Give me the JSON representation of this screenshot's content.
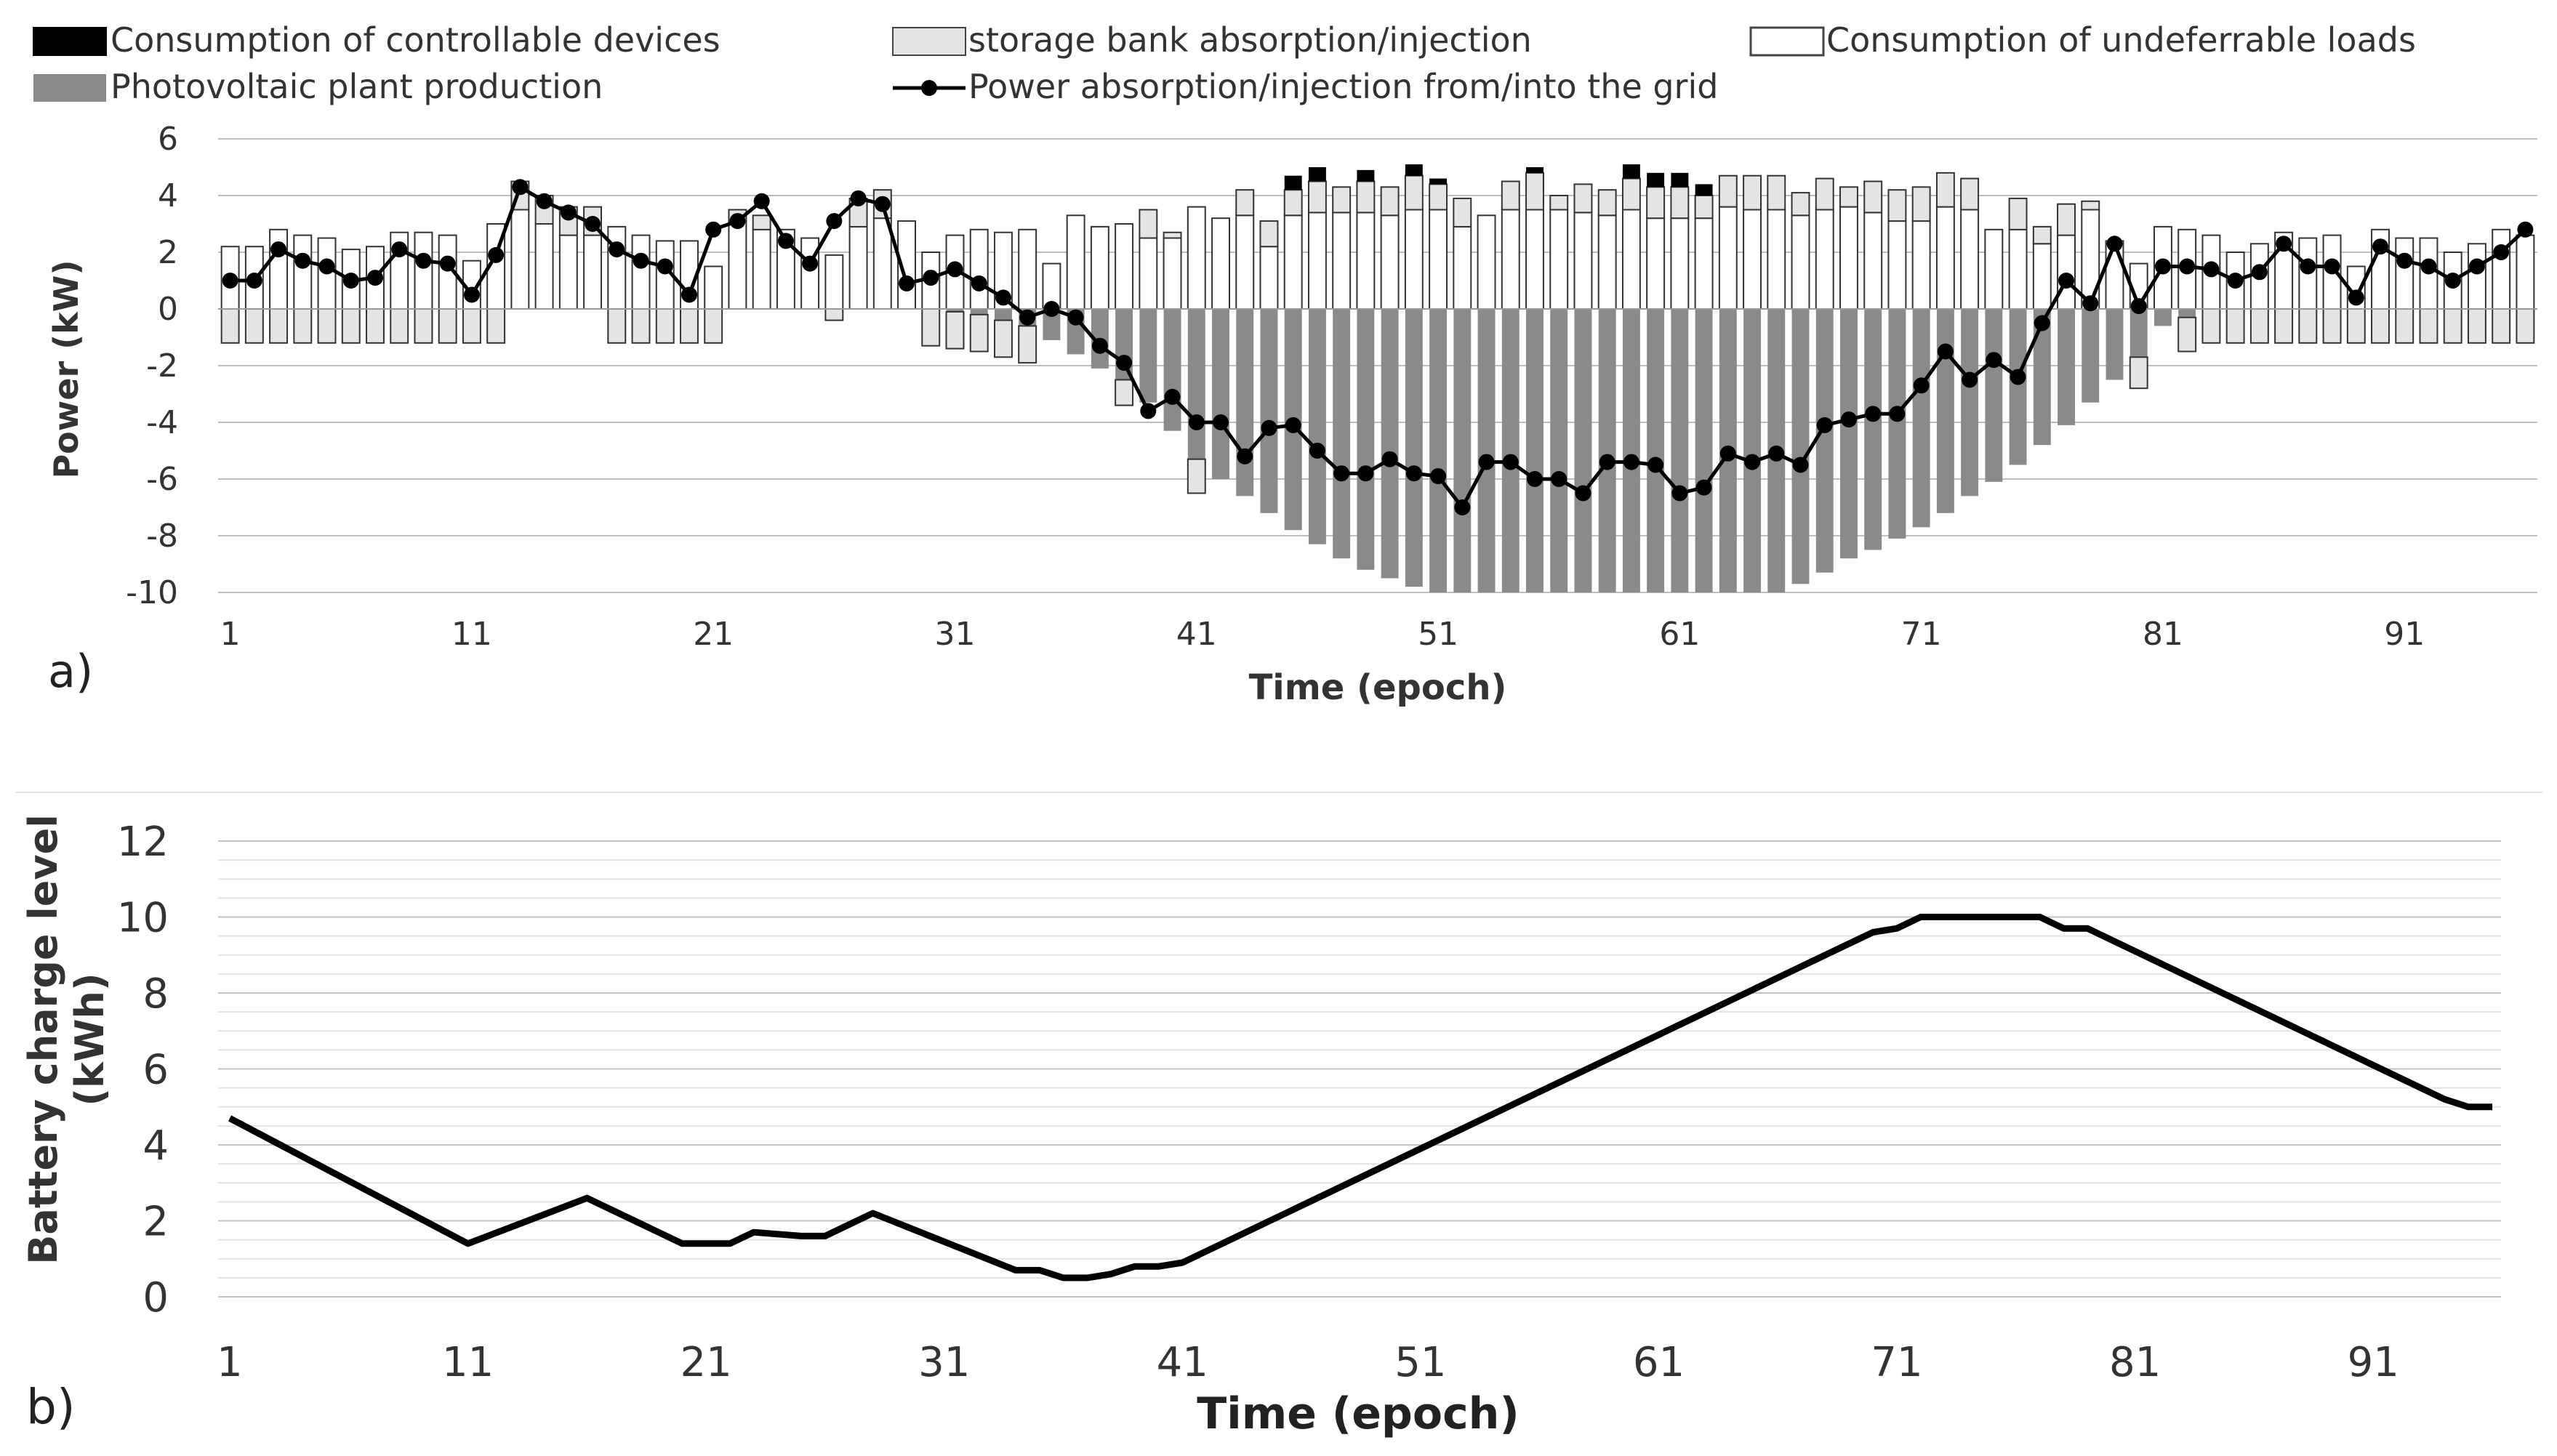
{
  "figure": {
    "panel_a_label": "a)",
    "panel_b_label": "b)"
  },
  "colors": {
    "controllable": "#000000",
    "storage_fill": "#e4e4e4",
    "undeferrable_fill": "#ffffff",
    "pv": "#8a8a8a",
    "grid_line": "#000000",
    "gridlines": "#bdbdbd"
  },
  "chart_data": [
    {
      "type": "bar",
      "panel": "a",
      "stacked": true,
      "xlabel": "Time (epoch)",
      "ylabel": "Power (kW)",
      "ylim": [
        -10,
        6
      ],
      "yticks": [
        "6",
        "4",
        "2",
        "0",
        "-2",
        "-4",
        "-6",
        "-8",
        "-10"
      ],
      "xtick_labels": [
        "1",
        "11",
        "21",
        "31",
        "41",
        "51",
        "61",
        "71",
        "81",
        "91"
      ],
      "grid": "horizontal",
      "legend_position": "top",
      "legend": [
        "Consumption of controllable devices",
        "storage bank absorption/injection",
        "Consumption of undeferrable loads",
        "Photovoltaic plant production",
        "Power absorption/injection from/into the grid"
      ],
      "x": [
        1,
        2,
        3,
        4,
        5,
        6,
        7,
        8,
        9,
        10,
        11,
        12,
        13,
        14,
        15,
        16,
        17,
        18,
        19,
        20,
        21,
        22,
        23,
        24,
        25,
        26,
        27,
        28,
        29,
        30,
        31,
        32,
        33,
        34,
        35,
        36,
        37,
        38,
        39,
        40,
        41,
        42,
        43,
        44,
        45,
        46,
        47,
        48,
        49,
        50,
        51,
        52,
        53,
        54,
        55,
        56,
        57,
        58,
        59,
        60,
        61,
        62,
        63,
        64,
        65,
        66,
        67,
        68,
        69,
        70,
        71,
        72,
        73,
        74,
        75,
        76,
        77,
        78,
        79,
        80,
        81,
        82,
        83,
        84,
        85,
        86,
        87,
        88,
        89,
        90,
        91,
        92,
        93,
        94,
        95,
        96
      ],
      "series": [
        {
          "name": "Consumption of undeferrable loads",
          "values": [
            2.2,
            2.2,
            2.8,
            2.6,
            2.5,
            2.1,
            2.2,
            2.7,
            2.7,
            2.6,
            1.7,
            3.0,
            3.5,
            3.0,
            2.6,
            2.6,
            2.9,
            2.6,
            2.4,
            2.4,
            1.5,
            3.1,
            2.8,
            2.8,
            2.5,
            1.9,
            2.9,
            3.2,
            3.1,
            2.0,
            2.6,
            2.8,
            2.7,
            2.8,
            1.6,
            3.3,
            2.9,
            3.0,
            2.5,
            2.5,
            3.6,
            3.2,
            3.3,
            2.2,
            3.3,
            3.4,
            3.4,
            3.4,
            3.3,
            3.5,
            3.5,
            2.9,
            3.3,
            3.5,
            3.5,
            3.5,
            3.4,
            3.3,
            3.5,
            3.2,
            3.2,
            3.2,
            3.6,
            3.5,
            3.5,
            3.3,
            3.5,
            3.6,
            3.4,
            3.1,
            3.1,
            3.6,
            3.5,
            2.8,
            2.8,
            2.3,
            2.6,
            3.5,
            2.4,
            1.6,
            2.9,
            2.8,
            2.6,
            2.0,
            2.3,
            2.7,
            2.5,
            2.6,
            1.5,
            2.8,
            2.5,
            2.5,
            2.0,
            2.3,
            2.8,
            2.6
          ]
        },
        {
          "name": "storage bank absorption/injection",
          "values": [
            -1.2,
            -1.2,
            -1.2,
            -1.2,
            -1.2,
            -1.2,
            -1.2,
            -1.2,
            -1.2,
            -1.2,
            -1.2,
            -1.2,
            1.0,
            1.0,
            1.0,
            1.0,
            -1.2,
            -1.2,
            -1.2,
            -1.2,
            -1.2,
            0.4,
            0.5,
            0,
            0,
            -0.4,
            1.0,
            1.0,
            0,
            -1.3,
            -1.3,
            -1.3,
            -1.3,
            -1.3,
            0,
            0,
            0,
            -0.9,
            1.0,
            0.2,
            -1.2,
            0,
            0.9,
            0.9,
            0.9,
            1.1,
            0.9,
            1.1,
            1.0,
            1.2,
            0.9,
            1.0,
            0,
            1.0,
            1.3,
            0.5,
            1.0,
            0.9,
            1.1,
            1.1,
            1.1,
            0.8,
            1.1,
            1.2,
            1.2,
            0.8,
            1.1,
            0.7,
            1.1,
            1.1,
            1.2,
            1.2,
            1.1,
            0,
            1.1,
            0.6,
            1.1,
            0.3,
            0,
            -1.1,
            0,
            -1.2,
            -1.2,
            -1.2,
            -1.2,
            -1.2,
            -1.2,
            -1.2,
            -1.2,
            -1.2,
            -1.2,
            -1.2,
            -1.2,
            -1.2,
            -1.2,
            -1.2
          ]
        },
        {
          "name": "Consumption of controllable devices",
          "values": [
            0,
            0,
            0,
            0,
            0,
            0,
            0,
            0,
            0,
            0,
            0,
            0,
            0,
            0,
            0,
            0,
            0,
            0,
            0,
            0,
            0,
            0,
            0,
            0,
            0,
            0,
            0,
            0,
            0,
            0,
            0,
            0,
            0,
            0,
            0,
            0,
            0,
            0,
            0,
            0,
            0,
            0,
            0,
            0,
            0.5,
            0.5,
            0,
            0.4,
            0,
            0.4,
            0.2,
            0,
            0,
            0,
            0.2,
            0,
            0,
            0,
            0.5,
            0.5,
            0.5,
            0.4,
            0,
            0,
            0,
            0,
            0,
            0,
            0,
            0,
            0,
            0,
            0,
            0,
            0,
            0,
            0,
            0,
            0,
            0,
            0,
            0,
            0,
            0,
            0,
            0,
            0,
            0,
            0,
            0,
            0,
            0,
            0,
            0,
            0,
            0
          ]
        },
        {
          "name": "Photovoltaic plant production",
          "values": [
            0,
            0,
            0,
            0,
            0,
            0,
            0,
            0,
            0,
            0,
            0,
            0,
            0,
            0,
            0,
            0,
            0,
            0,
            0,
            0,
            0,
            0,
            0,
            0,
            0,
            0,
            0,
            0,
            0,
            0,
            -0.1,
            -0.2,
            -0.4,
            -0.6,
            -1.1,
            -1.6,
            -2.1,
            -2.5,
            -3.3,
            -4.3,
            -5.3,
            -6.0,
            -6.6,
            -7.2,
            -7.8,
            -8.3,
            -8.8,
            -9.2,
            -9.5,
            -9.8,
            -10,
            -10,
            -10,
            -10,
            -10,
            -10,
            -10,
            -10,
            -10,
            -10,
            -10,
            -10,
            -10,
            -10,
            -10,
            -9.7,
            -9.3,
            -8.8,
            -8.5,
            -8.1,
            -7.7,
            -7.2,
            -6.6,
            -6.1,
            -5.5,
            -4.8,
            -4.1,
            -3.3,
            -2.5,
            -1.7,
            -0.6,
            -0.3,
            0,
            0,
            0,
            0,
            0,
            0,
            0,
            0,
            0,
            0,
            0,
            0,
            0,
            0
          ]
        },
        {
          "name": "Power absorption/injection from/into the grid",
          "type": "line",
          "values": [
            1.0,
            1.0,
            2.1,
            1.7,
            1.5,
            1.0,
            1.1,
            2.1,
            1.7,
            1.6,
            0.5,
            1.9,
            4.3,
            3.8,
            3.4,
            3.0,
            2.1,
            1.7,
            1.5,
            0.5,
            2.8,
            3.1,
            3.8,
            2.4,
            1.6,
            3.1,
            3.9,
            3.7,
            0.9,
            1.1,
            1.4,
            0.9,
            0.4,
            -0.3,
            0,
            -0.3,
            -1.3,
            -1.9,
            -3.6,
            -3.1,
            -4.0,
            -4.0,
            -5.2,
            -4.2,
            -4.1,
            -5.0,
            -5.8,
            -5.8,
            -5.3,
            -5.8,
            -5.9,
            -7.0,
            -5.4,
            -5.4,
            -6.0,
            -6.0,
            -6.5,
            -5.4,
            -5.4,
            -5.5,
            -6.5,
            -6.3,
            -5.1,
            -5.4,
            -5.1,
            -5.5,
            -4.1,
            -3.9,
            -3.7,
            -3.7,
            -2.7,
            -1.5,
            -2.5,
            -1.8,
            -2.4,
            -0.5,
            1.0,
            0.2,
            2.3,
            0.1,
            1.5,
            1.5,
            1.4,
            1.0,
            1.3,
            2.3,
            1.5,
            1.5,
            0.4,
            2.2,
            1.7,
            1.5,
            1.0,
            1.5,
            2.0,
            2.8
          ]
        }
      ]
    },
    {
      "type": "line",
      "panel": "b",
      "xlabel": "Time (epoch)",
      "ylabel": "Battery charge level (kWh)",
      "ylabel_lines": [
        "Battery charge level",
        "(kWh)"
      ],
      "ylim": [
        0,
        12
      ],
      "yticks": [
        "12",
        "10",
        "8",
        "6",
        "4",
        "2",
        "0"
      ],
      "xtick_labels": [
        "1",
        "11",
        "21",
        "31",
        "41",
        "51",
        "61",
        "71",
        "81",
        "91"
      ],
      "grid": "horizontal",
      "series": [
        {
          "name": "Battery charge level",
          "x": [
            1,
            11,
            16,
            20,
            22,
            23,
            25,
            26,
            28,
            34,
            35,
            36,
            37,
            38,
            39,
            40,
            41,
            70,
            71,
            72,
            77,
            78,
            79,
            94,
            95,
            96
          ],
          "values": [
            4.7,
            1.4,
            2.6,
            1.4,
            1.4,
            1.7,
            1.6,
            1.6,
            2.2,
            0.7,
            0.7,
            0.5,
            0.5,
            0.6,
            0.8,
            0.8,
            0.9,
            9.6,
            9.7,
            10.0,
            10.0,
            9.7,
            9.7,
            5.2,
            5.0,
            5.0
          ]
        }
      ]
    }
  ]
}
